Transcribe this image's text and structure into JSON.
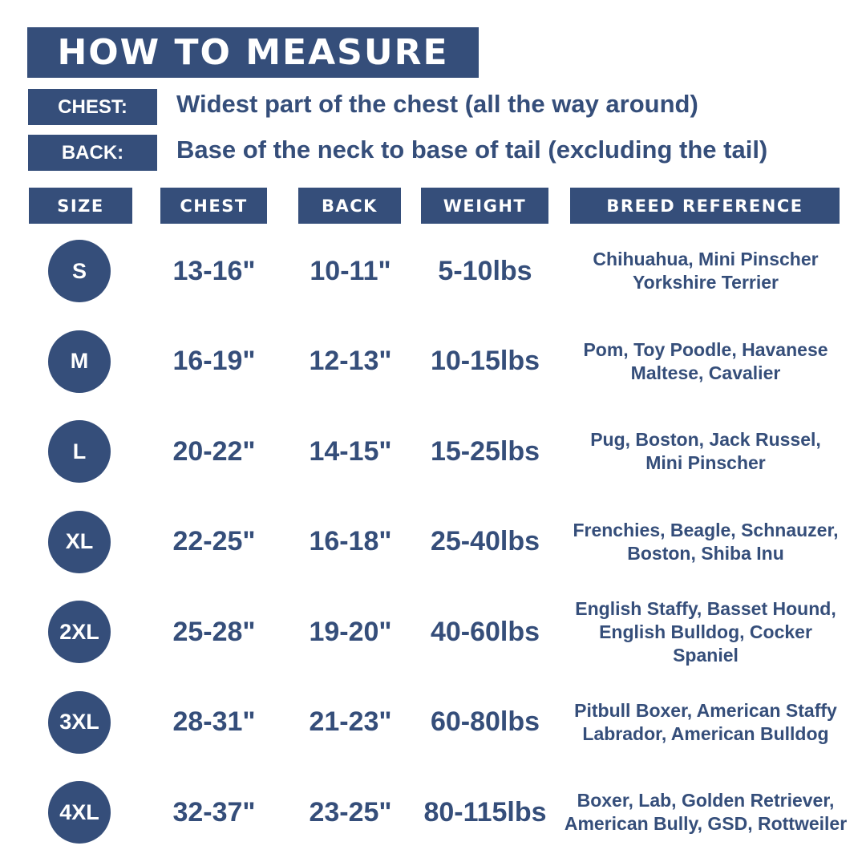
{
  "title": "HOW TO MEASURE",
  "definitions": [
    {
      "label": "CHEST:",
      "text": "Widest part of the chest (all the way around)"
    },
    {
      "label": "BACK:",
      "text": "Base of the neck to base of tail (excluding the tail)"
    }
  ],
  "columns": [
    "SIZE",
    "CHEST",
    "BACK",
    "WEIGHT",
    "BREED REFERENCE"
  ],
  "rows": [
    {
      "size": "S",
      "chest": "13-16\"",
      "back": "10-11\"",
      "weight": "5-10lbs",
      "breed": [
        "Chihuahua, Mini Pinscher",
        "Yorkshire Terrier"
      ]
    },
    {
      "size": "M",
      "chest": "16-19\"",
      "back": "12-13\"",
      "weight": "10-15lbs",
      "breed": [
        "Pom, Toy Poodle, Havanese",
        "Maltese, Cavalier"
      ]
    },
    {
      "size": "L",
      "chest": "20-22\"",
      "back": "14-15\"",
      "weight": "15-25lbs",
      "breed": [
        "Pug, Boston, Jack Russel,",
        "Mini Pinscher"
      ]
    },
    {
      "size": "XL",
      "chest": "22-25\"",
      "back": "16-18\"",
      "weight": "25-40lbs",
      "breed": [
        "Frenchies, Beagle, Schnauzer,",
        "Boston, Shiba Inu"
      ]
    },
    {
      "size": "2XL",
      "chest": "25-28\"",
      "back": "19-20\"",
      "weight": "40-60lbs",
      "breed": [
        "English Staffy, Basset Hound,",
        "English Bulldog, Cocker",
        "Spaniel"
      ]
    },
    {
      "size": "3XL",
      "chest": "28-31\"",
      "back": "21-23\"",
      "weight": "60-80lbs",
      "breed": [
        "Pitbull Boxer, American Staffy",
        "Labrador, American Bulldog"
      ]
    },
    {
      "size": "4XL",
      "chest": "32-37\"",
      "back": "23-25\"",
      "weight": "80-115lbs",
      "breed": [
        "Boxer, Lab, Golden Retriever,",
        "American Bully, GSD, Rottweiler"
      ]
    }
  ],
  "colors": {
    "primary": "#354e7a",
    "background": "#ffffff"
  }
}
